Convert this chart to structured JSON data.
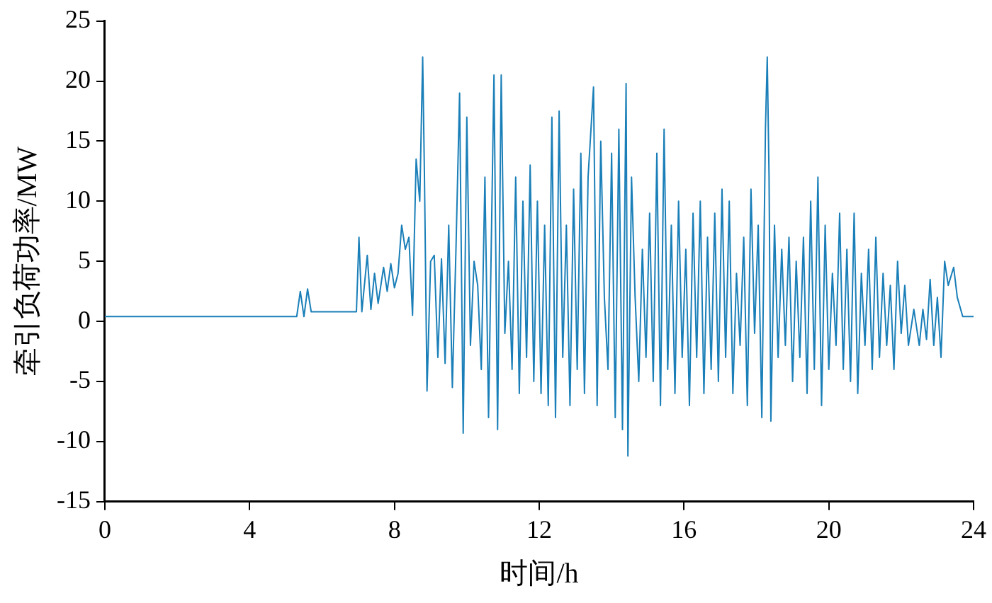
{
  "chart_data": {
    "type": "line",
    "xlabel": "时间/h",
    "ylabel": "牵引负荷功率/MW",
    "xlim": [
      0,
      24
    ],
    "xticks": [
      0,
      4,
      8,
      12,
      16,
      20,
      24
    ],
    "ylim": [
      -15,
      25
    ],
    "yticks": [
      -15,
      -10,
      -5,
      0,
      5,
      10,
      15,
      20,
      25
    ],
    "grid": false,
    "legend": false,
    "marker": "none",
    "line_style": "solid",
    "series": [
      {
        "color": "#1a7fb8",
        "x": [
          0,
          5.3,
          5.4,
          5.5,
          5.6,
          5.7,
          6.95,
          7.02,
          7.1,
          7.25,
          7.35,
          7.45,
          7.55,
          7.7,
          7.8,
          7.9,
          8.0,
          8.1,
          8.2,
          8.3,
          8.4,
          8.5,
          8.6,
          8.7,
          8.78,
          8.83,
          8.9,
          9.0,
          9.1,
          9.2,
          9.3,
          9.4,
          9.5,
          9.6,
          9.7,
          9.8,
          9.9,
          10.0,
          10.1,
          10.2,
          10.3,
          10.4,
          10.5,
          10.6,
          10.75,
          10.85,
          10.95,
          11.05,
          11.15,
          11.25,
          11.35,
          11.45,
          11.55,
          11.65,
          11.75,
          11.85,
          11.95,
          12.05,
          12.15,
          12.25,
          12.35,
          12.45,
          12.55,
          12.65,
          12.75,
          12.85,
          12.95,
          13.05,
          13.15,
          13.25,
          13.35,
          13.5,
          13.6,
          13.7,
          13.8,
          13.9,
          14.0,
          14.1,
          14.2,
          14.3,
          14.4,
          14.45,
          14.55,
          14.65,
          14.75,
          14.85,
          14.95,
          15.05,
          15.15,
          15.25,
          15.35,
          15.45,
          15.55,
          15.65,
          15.75,
          15.85,
          15.95,
          16.05,
          16.15,
          16.25,
          16.35,
          16.45,
          16.55,
          16.65,
          16.75,
          16.85,
          16.95,
          17.05,
          17.15,
          17.25,
          17.35,
          17.45,
          17.55,
          17.65,
          17.75,
          17.85,
          17.95,
          18.05,
          18.15,
          18.25,
          18.3,
          18.35,
          18.4,
          18.5,
          18.6,
          18.7,
          18.8,
          18.9,
          19.0,
          19.1,
          19.2,
          19.3,
          19.4,
          19.5,
          19.6,
          19.7,
          19.8,
          19.9,
          20.0,
          20.1,
          20.2,
          20.3,
          20.4,
          20.5,
          20.6,
          20.7,
          20.8,
          20.9,
          21.0,
          21.1,
          21.2,
          21.3,
          21.4,
          21.5,
          21.6,
          21.7,
          21.8,
          21.9,
          22.0,
          22.1,
          22.2,
          22.35,
          22.5,
          22.6,
          22.7,
          22.8,
          22.9,
          23.0,
          23.1,
          23.2,
          23.3,
          23.45,
          23.55,
          23.7,
          24
        ],
        "values": [
          0.4,
          0.4,
          2.5,
          0.4,
          2.7,
          0.8,
          0.8,
          7,
          0.8,
          5.5,
          1,
          4,
          1.5,
          4.5,
          2.5,
          4.8,
          2.8,
          4,
          8,
          6,
          7,
          0.5,
          13.5,
          10,
          22,
          12,
          -5.8,
          5,
          5.5,
          -3,
          5.2,
          -3.5,
          8,
          -5.5,
          6,
          19,
          -9.3,
          17,
          -2,
          5,
          3,
          -4,
          12,
          -8,
          20.5,
          -9,
          20.5,
          -1,
          5,
          -4,
          12,
          -6,
          10,
          -3,
          13,
          -5,
          10,
          -6,
          8,
          -7,
          17,
          -8,
          17.5,
          -3,
          8,
          -7,
          11,
          -4,
          14,
          -6,
          12,
          19.5,
          -7,
          15,
          2,
          -4,
          14,
          -8,
          16,
          -9,
          19.8,
          -11.2,
          12,
          2,
          -5,
          6,
          -3,
          9,
          -5,
          14,
          -7,
          16,
          -4,
          8,
          -6,
          10,
          -3,
          6,
          -7,
          9,
          -3,
          10,
          -6,
          7,
          -4,
          9,
          -5,
          11,
          -3,
          10,
          -6,
          4,
          -2,
          7,
          -7,
          11,
          -1,
          8,
          -8,
          16,
          22,
          12,
          -8.3,
          8,
          -3,
          6,
          -2,
          7,
          -5,
          5,
          -3,
          7,
          -6,
          10,
          -4,
          12,
          -7,
          8,
          -4,
          4,
          -2,
          9,
          -4,
          6,
          -5,
          9,
          -6,
          4,
          -2,
          6,
          -4,
          7,
          -3,
          4,
          -2,
          3,
          -4,
          5,
          -1,
          3,
          -2,
          1,
          -2,
          1,
          -1.5,
          3.5,
          -2,
          2,
          -3,
          5,
          3,
          4.5,
          2,
          0.4,
          0.4
        ]
      }
    ]
  }
}
